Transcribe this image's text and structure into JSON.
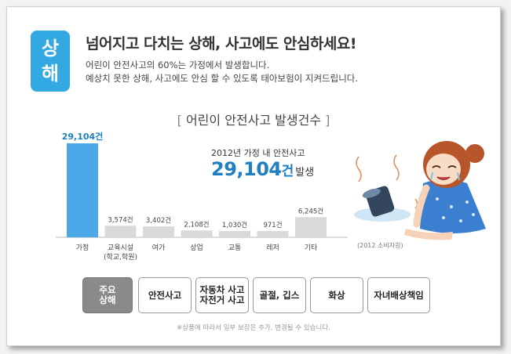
{
  "banner": {
    "badge": [
      "상",
      "해"
    ],
    "headline": "넘어지고 다치는 상해, 사고에도 안심하세요!",
    "desc1": "어린이 안전사고의 60%는 가정에서 발생합니다.",
    "desc2": "예상치 못한 상해, 사고에도 안심 할 수 있도록 태아보험이 지켜드립니다."
  },
  "colors": {
    "accent": "#33a9e3",
    "highlight_bar": "#4aa9e6",
    "gray_bar": "#d9d9d9",
    "number_blue": "#1e7fc2"
  },
  "chart_data": {
    "type": "bar",
    "title": "어린이 안전사고 발생건수",
    "categories": [
      "가정",
      "교육시설\n(학교,학원)",
      "여가",
      "상업",
      "교통",
      "레저",
      "기타"
    ],
    "values": [
      29104,
      3574,
      3402,
      2108,
      1030,
      971,
      6245
    ],
    "value_labels": [
      "29,104건",
      "3,574건",
      "3,402건",
      "2,108건",
      "1,030건",
      "971건",
      "6,245건"
    ],
    "highlight_index": 0,
    "ylim": [
      0,
      29104
    ],
    "grid": false,
    "callout": {
      "line1": "2012년 가정 내 안전사고",
      "number": "29,104",
      "unit": "건",
      "suffix": "발생"
    },
    "source": "(2012 소비자원)"
  },
  "buttons": {
    "main": "주요\n상해",
    "items": [
      "안전사고",
      "자동차 사고\n자전거 사고",
      "골절, 깁스",
      "화상",
      "자녀배상책임"
    ]
  },
  "footnote": "※상품에 따라서 일부 보장은 추가, 변경될 수 있습니다."
}
